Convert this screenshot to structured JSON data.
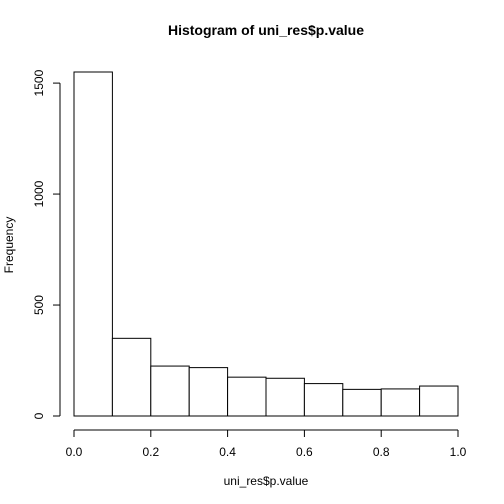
{
  "chart_data": {
    "type": "bar",
    "title": "Histogram of uni_res$p.value",
    "xlabel": "uni_res$p.value",
    "ylabel": "Frequency",
    "bins": [
      {
        "x0": 0.0,
        "x1": 0.1,
        "count": 1550
      },
      {
        "x0": 0.1,
        "x1": 0.2,
        "count": 350
      },
      {
        "x0": 0.2,
        "x1": 0.3,
        "count": 225
      },
      {
        "x0": 0.3,
        "x1": 0.4,
        "count": 218
      },
      {
        "x0": 0.4,
        "x1": 0.5,
        "count": 175
      },
      {
        "x0": 0.5,
        "x1": 0.6,
        "count": 170
      },
      {
        "x0": 0.6,
        "x1": 0.7,
        "count": 146
      },
      {
        "x0": 0.7,
        "x1": 0.8,
        "count": 120
      },
      {
        "x0": 0.8,
        "x1": 0.9,
        "count": 122
      },
      {
        "x0": 0.9,
        "x1": 1.0,
        "count": 135
      }
    ],
    "xlim": [
      0.0,
      1.0
    ],
    "ylim": [
      0,
      1550
    ],
    "x_ticks": [
      0.0,
      0.2,
      0.4,
      0.6,
      0.8,
      1.0
    ],
    "x_tick_labels": [
      "0.0",
      "0.2",
      "0.4",
      "0.6",
      "0.8",
      "1.0"
    ],
    "y_ticks": [
      0,
      500,
      1000,
      1500
    ],
    "y_tick_labels": [
      "0",
      "500",
      "1000",
      "1500"
    ],
    "grid": false,
    "colors": {
      "bar_fill": "#ffffff",
      "bar_stroke": "#000000"
    }
  }
}
